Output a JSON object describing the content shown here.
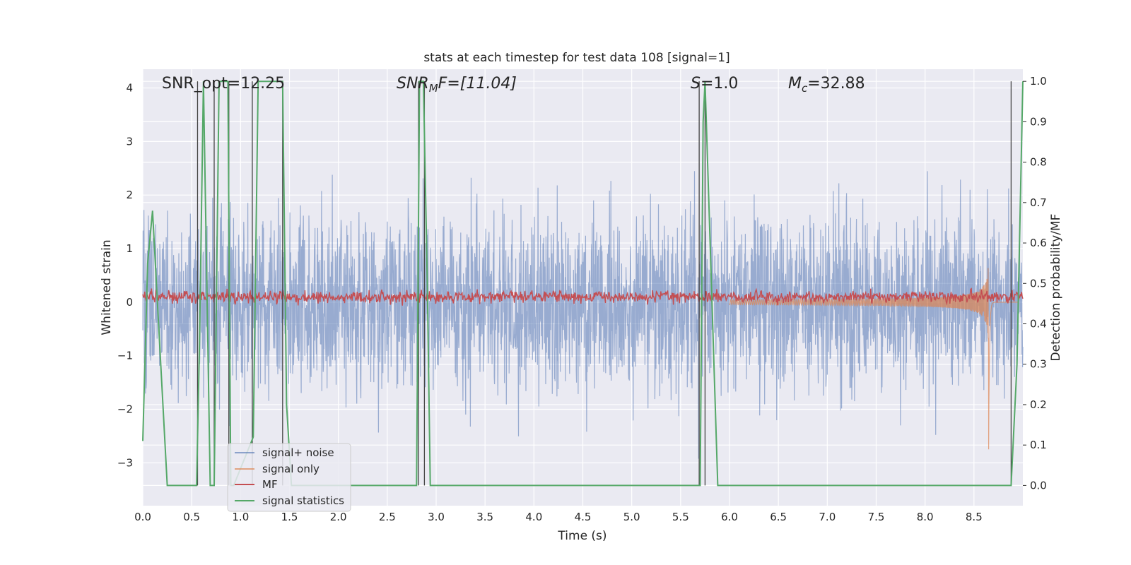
{
  "chart_data": {
    "type": "line",
    "title": "stats at each timestep for test data 108 [signal=1]",
    "xlabel": "Time (s)",
    "ylabel_left": "Whitened strain",
    "ylabel_right": "Detection probability/MF",
    "xlim": [
      0,
      9
    ],
    "ylim_left": [
      -3.8,
      4.35
    ],
    "ylim_right": [
      -0.05,
      1.03
    ],
    "x_ticks": [
      "0.0",
      "0.5",
      "1.0",
      "1.5",
      "2.0",
      "2.5",
      "3.0",
      "3.5",
      "4.0",
      "4.5",
      "5.0",
      "5.5",
      "6.0",
      "6.5",
      "7.0",
      "7.5",
      "8.0",
      "8.5"
    ],
    "y_left_ticks": [
      "4",
      "3",
      "2",
      "1",
      "0",
      "−1",
      "−2",
      "−3"
    ],
    "y_right_ticks": [
      "1.0",
      "0.9",
      "0.8",
      "0.7",
      "0.6",
      "0.5",
      "0.4",
      "0.3",
      "0.2",
      "0.1",
      "0.0"
    ],
    "grid": true,
    "legend_placement": "lower-left",
    "series": [
      {
        "name": "signal+ noise",
        "color": "#4c72b0",
        "axis": "left",
        "style": "noise band, amplitude about ±1.8 with spikes to about ±3.4"
      },
      {
        "name": "signal only",
        "color": "#dd8452",
        "axis": "left",
        "style": "chirp rising to merger near t=8.65"
      },
      {
        "name": "MF",
        "color": "#c44e52",
        "axis": "left",
        "style": "noisy trace near 0.1"
      },
      {
        "name": "signal statistics",
        "color": "#55a868",
        "axis": "right",
        "x": [
          0.0,
          0.05,
          0.1,
          0.15,
          0.25,
          0.55,
          0.58,
          0.62,
          0.69,
          0.73,
          0.78,
          0.87,
          0.9,
          0.93,
          1.13,
          1.18,
          1.43,
          1.47,
          1.52,
          2.8,
          2.83,
          2.87,
          2.91,
          2.94,
          5.7,
          5.73,
          5.75,
          5.88,
          8.88,
          8.94,
          9.0
        ],
        "y": [
          0.11,
          0.55,
          0.68,
          0.45,
          0.0,
          0.0,
          0.35,
          1.0,
          0.0,
          0.0,
          1.0,
          1.0,
          0.0,
          0.0,
          0.12,
          1.0,
          1.0,
          0.2,
          0.0,
          0.0,
          1.0,
          1.0,
          0.5,
          0.0,
          0.0,
          0.9,
          1.0,
          0.0,
          0.0,
          0.3,
          1.0
        ]
      }
    ],
    "vlines_x": [
      0.56,
      0.73,
      0.88,
      1.12,
      1.43,
      2.82,
      2.88,
      5.69,
      5.75,
      8.88
    ],
    "annotations": [
      {
        "text": "SNR_opt=12.25"
      },
      {
        "base": "SNR",
        "sub": "M",
        "tail": "F=[11.04]"
      },
      {
        "base": "S",
        "tail": "=1.0"
      },
      {
        "base": "M",
        "sub": "c",
        "tail": "=32.88"
      }
    ]
  }
}
